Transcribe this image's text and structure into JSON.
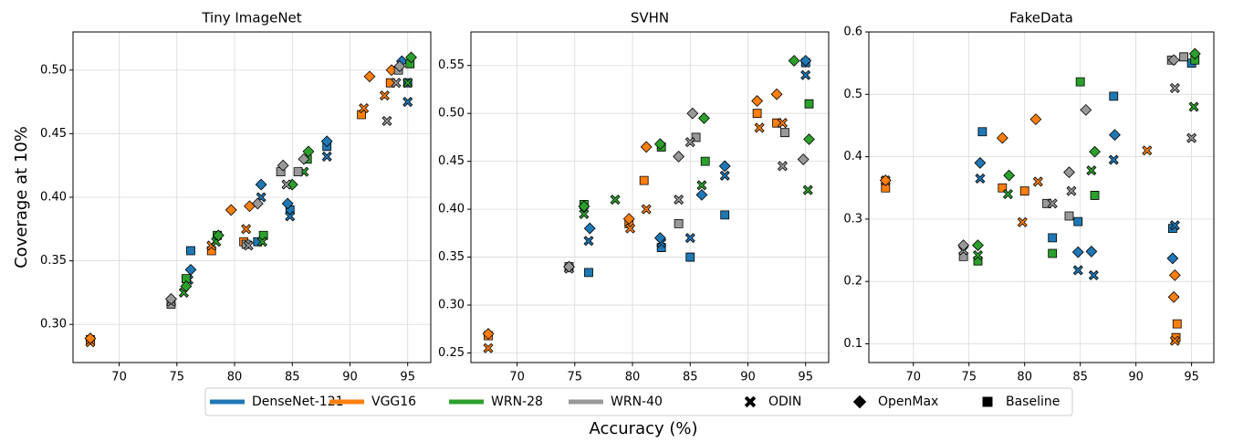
{
  "xlabel": "Accuracy (%)",
  "ylabel": "Coverage at 10%",
  "legend": {
    "models": [
      {
        "name": "DenseNet-121",
        "color": "#1f77b4"
      },
      {
        "name": "VGG16",
        "color": "#ff7f0e"
      },
      {
        "name": "WRN-28",
        "color": "#2ca02c"
      },
      {
        "name": "WRN-40",
        "color": "#999999"
      }
    ],
    "methods": [
      {
        "name": "ODIN",
        "marker": "x"
      },
      {
        "name": "OpenMax",
        "marker": "diamond"
      },
      {
        "name": "Baseline",
        "marker": "square"
      }
    ]
  },
  "chart_data": [
    {
      "type": "scatter",
      "title": "Tiny ImageNet",
      "xlim": [
        66,
        97
      ],
      "xticks": [
        70,
        75,
        80,
        85,
        90,
        95
      ],
      "ylim": [
        0.27,
        0.53
      ],
      "yticks": [
        {
          "value": 0.3,
          "label": "0.30"
        },
        0.35,
        {
          "value": 0.4,
          "label": "0.40"
        },
        0.45,
        {
          "value": 0.5,
          "label": "0.50"
        }
      ],
      "grid": true,
      "series": [
        {
          "model": "DenseNet-121",
          "method": "Baseline",
          "color": "#1f77b4",
          "marker": "square",
          "x": [
            76.2,
            82,
            84.8,
            88,
            95
          ],
          "values": [
            0.358,
            0.365,
            0.39,
            0.44,
            0.49
          ]
        },
        {
          "model": "DenseNet-121",
          "method": "ODIN",
          "color": "#1f77b4",
          "marker": "x",
          "x": [
            76,
            82.3,
            84.8,
            88,
            95
          ],
          "values": [
            0.335,
            0.4,
            0.385,
            0.432,
            0.475
          ]
        },
        {
          "model": "DenseNet-121",
          "method": "OpenMax",
          "color": "#1f77b4",
          "marker": "diamond",
          "x": [
            76.2,
            82.3,
            84.6,
            88,
            94.5
          ],
          "values": [
            0.343,
            0.41,
            0.395,
            0.444,
            0.507
          ]
        },
        {
          "model": "VGG16",
          "method": "Baseline",
          "color": "#ff7f0e",
          "marker": "square",
          "x": [
            67.5,
            78,
            80.8,
            91,
            93.5
          ],
          "values": [
            0.288,
            0.358,
            0.365,
            0.465,
            0.49
          ]
        },
        {
          "model": "VGG16",
          "method": "ODIN",
          "color": "#ff7f0e",
          "marker": "x",
          "x": [
            67.5,
            78,
            81,
            91.2,
            93
          ],
          "values": [
            0.286,
            0.362,
            0.375,
            0.47,
            0.48
          ]
        },
        {
          "model": "VGG16",
          "method": "OpenMax",
          "color": "#ff7f0e",
          "marker": "diamond",
          "x": [
            67.5,
            79.7,
            81.3,
            91.7,
            93.6
          ],
          "values": [
            0.289,
            0.39,
            0.393,
            0.495,
            0.5
          ]
        },
        {
          "model": "WRN-28",
          "method": "Baseline",
          "color": "#2ca02c",
          "marker": "square",
          "x": [
            75.8,
            78.5,
            82.5,
            86.3,
            95.2
          ],
          "values": [
            0.336,
            0.37,
            0.37,
            0.43,
            0.505
          ]
        },
        {
          "model": "WRN-28",
          "method": "ODIN",
          "color": "#2ca02c",
          "marker": "x",
          "x": [
            75.6,
            78.4,
            82.4,
            86,
            95
          ],
          "values": [
            0.325,
            0.365,
            0.365,
            0.42,
            0.49
          ]
        },
        {
          "model": "WRN-28",
          "method": "OpenMax",
          "color": "#2ca02c",
          "marker": "diamond",
          "x": [
            75.8,
            78.6,
            85,
            86.4,
            95.3
          ],
          "values": [
            0.33,
            0.37,
            0.41,
            0.436,
            0.51
          ]
        },
        {
          "model": "WRN-40",
          "method": "Baseline",
          "color": "#999999",
          "marker": "square",
          "x": [
            74.5,
            81,
            84,
            85.5,
            94.2
          ],
          "values": [
            0.316,
            0.363,
            0.42,
            0.42,
            0.5
          ]
        },
        {
          "model": "WRN-40",
          "method": "ODIN",
          "color": "#999999",
          "marker": "x",
          "x": [
            74.5,
            81.2,
            84.5,
            93.2,
            94
          ],
          "values": [
            0.318,
            0.362,
            0.41,
            0.46,
            0.49
          ]
        },
        {
          "model": "WRN-40",
          "method": "OpenMax",
          "color": "#999999",
          "marker": "diamond",
          "x": [
            74.5,
            82,
            84.2,
            86,
            94.3
          ],
          "values": [
            0.32,
            0.395,
            0.425,
            0.43,
            0.503
          ]
        }
      ]
    },
    {
      "type": "scatter",
      "title": "SVHN",
      "xlim": [
        66,
        97
      ],
      "xticks": [
        70,
        75,
        80,
        85,
        90,
        95
      ],
      "ylim": [
        0.24,
        0.585
      ],
      "yticks": [
        0.25,
        {
          "value": 0.3,
          "label": "0.30"
        },
        0.35,
        {
          "value": 0.4,
          "label": "0.40"
        },
        0.45,
        {
          "value": 0.5,
          "label": "0.50"
        },
        0.55
      ],
      "grid": true,
      "series": [
        {
          "model": "DenseNet-121",
          "method": "Baseline",
          "color": "#1f77b4",
          "marker": "square",
          "x": [
            76.2,
            82.5,
            85,
            88,
            95
          ],
          "values": [
            0.334,
            0.36,
            0.35,
            0.394,
            0.553
          ]
        },
        {
          "model": "DenseNet-121",
          "method": "ODIN",
          "color": "#1f77b4",
          "marker": "x",
          "x": [
            76.2,
            82.5,
            85,
            88,
            95
          ],
          "values": [
            0.367,
            0.365,
            0.37,
            0.435,
            0.54
          ]
        },
        {
          "model": "DenseNet-121",
          "method": "OpenMax",
          "color": "#1f77b4",
          "marker": "diamond",
          "x": [
            76.3,
            82.4,
            86,
            88,
            95
          ],
          "values": [
            0.38,
            0.37,
            0.415,
            0.445,
            0.555
          ]
        },
        {
          "model": "VGG16",
          "method": "Baseline",
          "color": "#ff7f0e",
          "marker": "square",
          "x": [
            67.5,
            79.7,
            81,
            90.8,
            92.5
          ],
          "values": [
            0.268,
            0.385,
            0.43,
            0.5,
            0.49
          ]
        },
        {
          "model": "VGG16",
          "method": "ODIN",
          "color": "#ff7f0e",
          "marker": "x",
          "x": [
            67.5,
            79.8,
            81.2,
            91,
            93
          ],
          "values": [
            0.255,
            0.38,
            0.4,
            0.485,
            0.49
          ]
        },
        {
          "model": "VGG16",
          "method": "OpenMax",
          "color": "#ff7f0e",
          "marker": "diamond",
          "x": [
            67.5,
            79.7,
            81.2,
            90.8,
            92.5
          ],
          "values": [
            0.27,
            0.39,
            0.465,
            0.513,
            0.52
          ]
        },
        {
          "model": "WRN-28",
          "method": "Baseline",
          "color": "#2ca02c",
          "marker": "square",
          "x": [
            75.8,
            82.5,
            86.3,
            95.3
          ],
          "values": [
            0.405,
            0.465,
            0.45,
            0.51
          ]
        },
        {
          "model": "WRN-28",
          "method": "ODIN",
          "color": "#2ca02c",
          "marker": "x",
          "x": [
            75.8,
            78.5,
            86,
            95.2
          ],
          "values": [
            0.395,
            0.41,
            0.425,
            0.42
          ]
        },
        {
          "model": "WRN-28",
          "method": "OpenMax",
          "color": "#2ca02c",
          "marker": "diamond",
          "x": [
            75.8,
            82.4,
            86.2,
            94,
            95.3
          ],
          "values": [
            0.403,
            0.468,
            0.495,
            0.555,
            0.473
          ]
        },
        {
          "model": "WRN-40",
          "method": "Baseline",
          "color": "#999999",
          "marker": "square",
          "x": [
            74.5,
            84,
            85.5,
            93.2
          ],
          "values": [
            0.34,
            0.385,
            0.475,
            0.48
          ]
        },
        {
          "model": "WRN-40",
          "method": "ODIN",
          "color": "#999999",
          "marker": "x",
          "x": [
            74.5,
            84,
            85,
            93
          ],
          "values": [
            0.338,
            0.41,
            0.47,
            0.445
          ]
        },
        {
          "model": "WRN-40",
          "method": "OpenMax",
          "color": "#999999",
          "marker": "diamond",
          "x": [
            74.5,
            84,
            85.2,
            94.8
          ],
          "values": [
            0.34,
            0.455,
            0.5,
            0.452
          ]
        }
      ]
    },
    {
      "type": "scatter",
      "title": "FakeData",
      "xlim": [
        66,
        97
      ],
      "xticks": [
        70,
        75,
        80,
        85,
        90,
        95
      ],
      "ylim": [
        0.07,
        0.6
      ],
      "yticks": [
        0.1,
        0.2,
        0.3,
        0.4,
        0.5,
        0.6
      ],
      "grid": true,
      "series": [
        {
          "model": "DenseNet-121",
          "method": "Baseline",
          "color": "#1f77b4",
          "marker": "square",
          "x": [
            76.2,
            82.5,
            84.8,
            88,
            93.3,
            95
          ],
          "values": [
            0.44,
            0.27,
            0.296,
            0.497,
            0.285,
            0.55
          ]
        },
        {
          "model": "DenseNet-121",
          "method": "ODIN",
          "color": "#1f77b4",
          "marker": "x",
          "x": [
            76,
            84.8,
            86.2,
            88,
            93.5
          ],
          "values": [
            0.365,
            0.218,
            0.21,
            0.395,
            0.29
          ]
        },
        {
          "model": "DenseNet-121",
          "method": "OpenMax",
          "color": "#1f77b4",
          "marker": "diamond",
          "x": [
            76,
            84.8,
            86,
            88.1,
            93.3
          ],
          "values": [
            0.39,
            0.247,
            0.248,
            0.435,
            0.237
          ]
        },
        {
          "model": "VGG16",
          "method": "Baseline",
          "color": "#ff7f0e",
          "marker": "square",
          "x": [
            67.5,
            78,
            80,
            93.6,
            93.7
          ],
          "values": [
            0.35,
            0.35,
            0.345,
            0.11,
            0.132
          ]
        },
        {
          "model": "VGG16",
          "method": "ODIN",
          "color": "#ff7f0e",
          "marker": "x",
          "x": [
            67.5,
            79.8,
            81.2,
            91,
            93.5
          ],
          "values": [
            0.362,
            0.295,
            0.36,
            0.41,
            0.105
          ]
        },
        {
          "model": "VGG16",
          "method": "OpenMax",
          "color": "#ff7f0e",
          "marker": "diamond",
          "x": [
            67.5,
            78,
            81,
            93.5,
            93.4
          ],
          "values": [
            0.362,
            0.43,
            0.46,
            0.21,
            0.175
          ]
        },
        {
          "model": "WRN-28",
          "method": "Baseline",
          "color": "#2ca02c",
          "marker": "square",
          "x": [
            75.8,
            82.5,
            85,
            86.3,
            95.3
          ],
          "values": [
            0.233,
            0.245,
            0.52,
            0.338,
            0.555
          ]
        },
        {
          "model": "WRN-28",
          "method": "ODIN",
          "color": "#2ca02c",
          "marker": "x",
          "x": [
            75.8,
            78.5,
            86,
            95.2
          ],
          "values": [
            0.242,
            0.34,
            0.378,
            0.48
          ]
        },
        {
          "model": "WRN-28",
          "method": "OpenMax",
          "color": "#2ca02c",
          "marker": "diamond",
          "x": [
            75.8,
            78.6,
            86.3,
            95.3
          ],
          "values": [
            0.258,
            0.37,
            0.408,
            0.565
          ]
        },
        {
          "model": "WRN-40",
          "method": "Baseline",
          "color": "#999999",
          "marker": "square",
          "x": [
            74.5,
            82,
            84,
            93.2,
            94.3
          ],
          "values": [
            0.24,
            0.325,
            0.305,
            0.555,
            0.56
          ]
        },
        {
          "model": "WRN-40",
          "method": "ODIN",
          "color": "#999999",
          "marker": "x",
          "x": [
            74.5,
            82.5,
            84.2,
            93.5,
            95
          ],
          "values": [
            0.25,
            0.325,
            0.345,
            0.51,
            0.43
          ]
        },
        {
          "model": "WRN-40",
          "method": "OpenMax",
          "color": "#999999",
          "marker": "diamond",
          "x": [
            74.5,
            84,
            85.5,
            93.4
          ],
          "values": [
            0.258,
            0.375,
            0.475,
            0.555
          ]
        }
      ]
    }
  ]
}
